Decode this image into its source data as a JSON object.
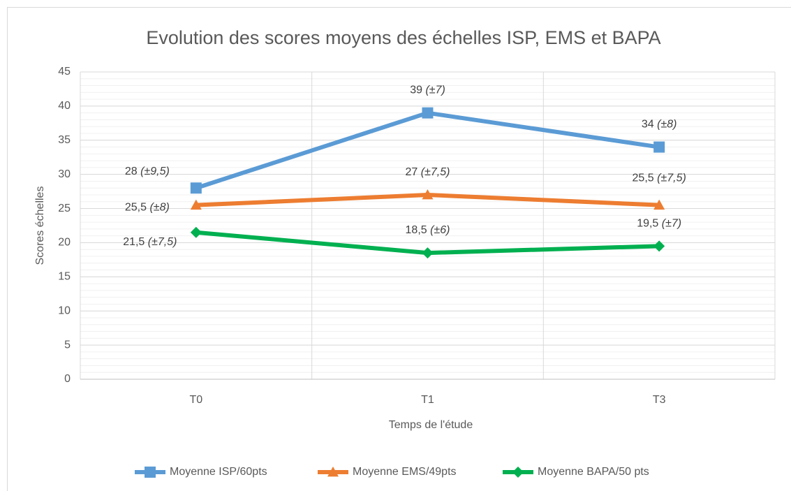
{
  "chart_data": {
    "type": "line",
    "title": "Evolution des scores moyens des échelles ISP, EMS et BAPA",
    "x_label": "Temps de l'étude",
    "y_label": "Scores échelles",
    "categories": [
      "T0",
      "T1",
      "T3"
    ],
    "series": [
      {
        "name": "Moyenne ISP/60pts",
        "color": "#5b9bd5",
        "marker": "square",
        "values": [
          28,
          39,
          34
        ],
        "value_labels": [
          "28 (±9,5)",
          "39 (±7)",
          "34 (±8)"
        ]
      },
      {
        "name": "Moyenne EMS/49pts",
        "color": "#ed7d31",
        "marker": "triangle",
        "values": [
          25.5,
          27,
          25.5
        ],
        "value_labels": [
          "25,5 (±8)",
          "27 (±7,5)",
          "25,5 (±7,5)"
        ]
      },
      {
        "name": "Moyenne BAPA/50 pts",
        "color": "#00b050",
        "marker": "diamond",
        "values": [
          21.5,
          18.5,
          19.5
        ],
        "value_labels": [
          "21,5 (±7,5)",
          "18,5 (±6)",
          "19,5 (±7)"
        ]
      }
    ],
    "ylim": [
      0,
      45
    ],
    "yticks": [
      0,
      5,
      10,
      15,
      20,
      25,
      30,
      35,
      40,
      45
    ],
    "grid": true,
    "legend": "bottom"
  }
}
